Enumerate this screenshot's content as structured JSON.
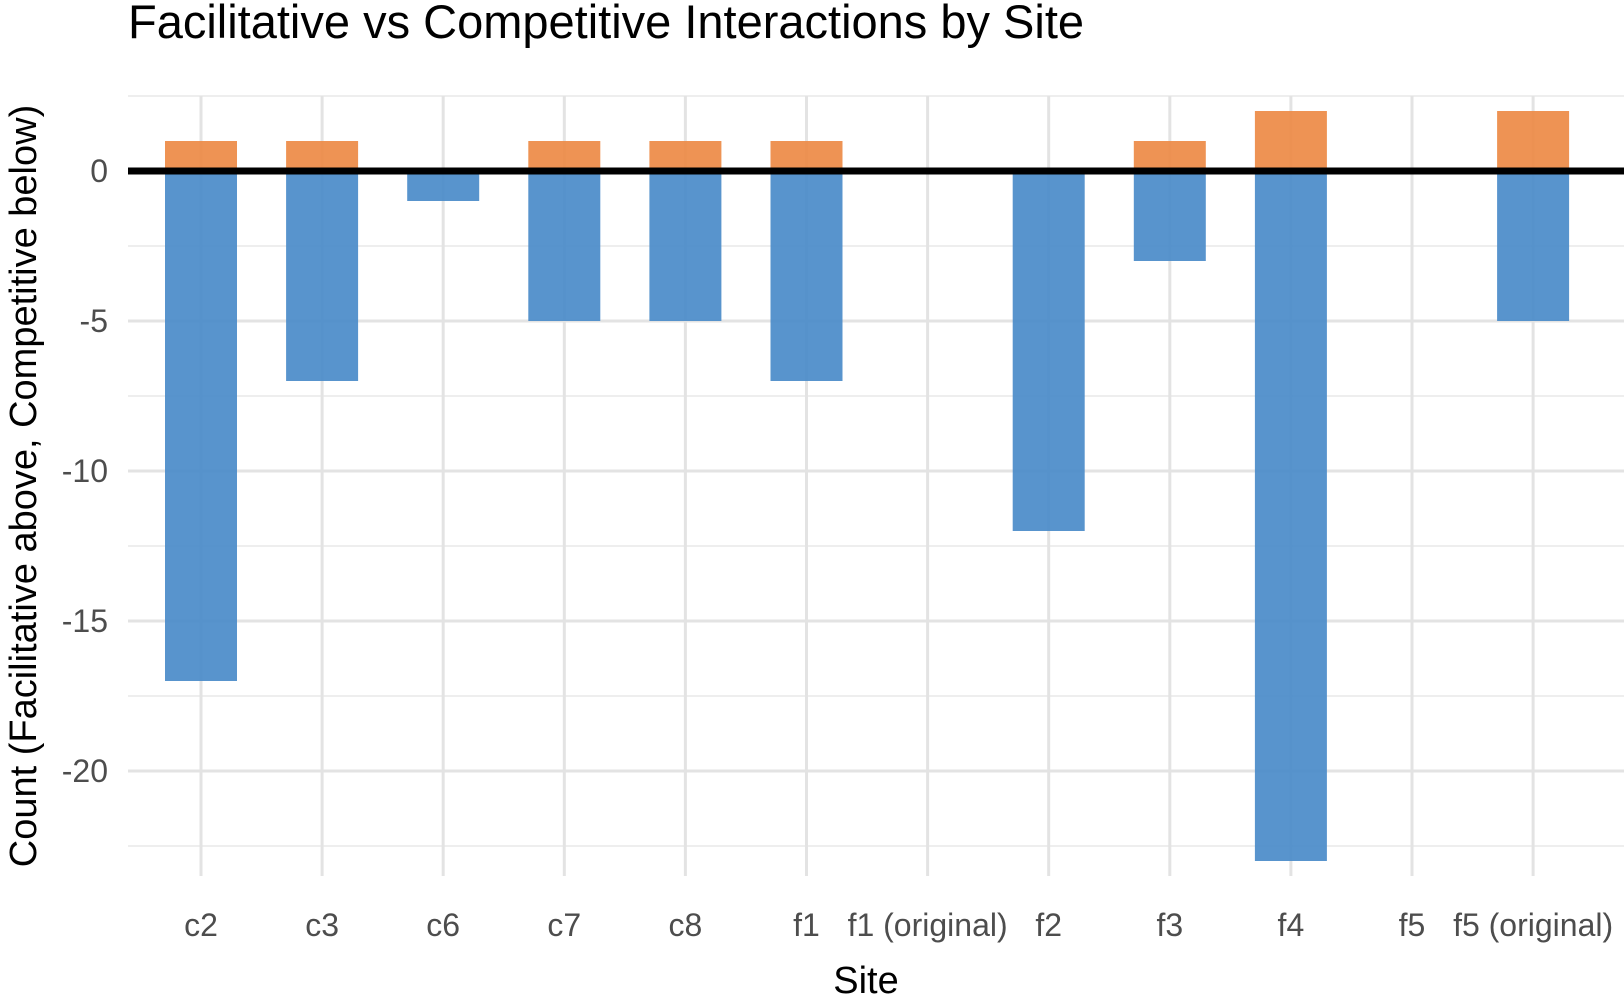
{
  "chart_data": {
    "type": "bar",
    "title": "Facilitative vs Competitive Interactions by Site",
    "xlabel": "Site",
    "ylabel": "Count (Facilitative above, Competitive below)",
    "categories": [
      "c2",
      "c3",
      "c6",
      "c7",
      "c8",
      "f1",
      "f1 (original)",
      "f2",
      "f3",
      "f4",
      "f5",
      "f5 (original)"
    ],
    "series": [
      {
        "name": "Facilitative",
        "color": "#ED8A45",
        "values": [
          1,
          1,
          0,
          1,
          1,
          1,
          0,
          0,
          1,
          2,
          0,
          2
        ]
      },
      {
        "name": "Competitive",
        "color": "#4A8BC9",
        "values": [
          -17,
          -7,
          -1,
          -5,
          -5,
          -7,
          0,
          -12,
          -3,
          -23,
          0,
          -5
        ]
      }
    ],
    "ylim": [
      -23.5,
      2.5
    ],
    "yticks": [
      0,
      -5,
      -10,
      -15,
      -20
    ],
    "zero_line": true,
    "grid": true,
    "legend": "none",
    "stacked": "diverging"
  }
}
